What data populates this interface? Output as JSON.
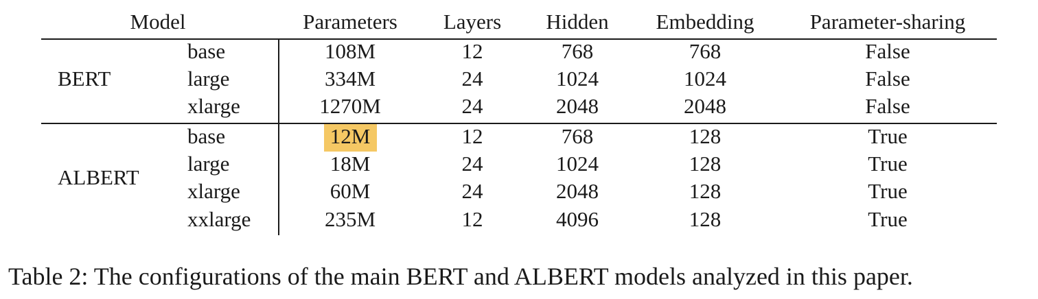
{
  "table": {
    "headers": {
      "model": "Model",
      "parameters": "Parameters",
      "layers": "Layers",
      "hidden": "Hidden",
      "embedding": "Embedding",
      "parameter_sharing": "Parameter-sharing"
    },
    "groups": [
      {
        "name": "BERT",
        "rows": [
          {
            "size": "base",
            "parameters": "108M",
            "layers": "12",
            "hidden": "768",
            "embedding": "768",
            "parameter_sharing": "False"
          },
          {
            "size": "large",
            "parameters": "334M",
            "layers": "24",
            "hidden": "1024",
            "embedding": "1024",
            "parameter_sharing": "False"
          },
          {
            "size": "xlarge",
            "parameters": "1270M",
            "layers": "24",
            "hidden": "2048",
            "embedding": "2048",
            "parameter_sharing": "False"
          }
        ]
      },
      {
        "name": "ALBERT",
        "rows": [
          {
            "size": "base",
            "parameters": "12M",
            "layers": "12",
            "hidden": "768",
            "embedding": "128",
            "parameter_sharing": "True"
          },
          {
            "size": "large",
            "parameters": "18M",
            "layers": "24",
            "hidden": "1024",
            "embedding": "128",
            "parameter_sharing": "True"
          },
          {
            "size": "xlarge",
            "parameters": "60M",
            "layers": "24",
            "hidden": "2048",
            "embedding": "128",
            "parameter_sharing": "True"
          },
          {
            "size": "xxlarge",
            "parameters": "235M",
            "layers": "12",
            "hidden": "4096",
            "embedding": "128",
            "parameter_sharing": "True"
          }
        ]
      }
    ],
    "highlight_color": "#f5c864"
  },
  "caption": "Table 2: The configurations of the main BERT and ALBERT models analyzed in this paper."
}
